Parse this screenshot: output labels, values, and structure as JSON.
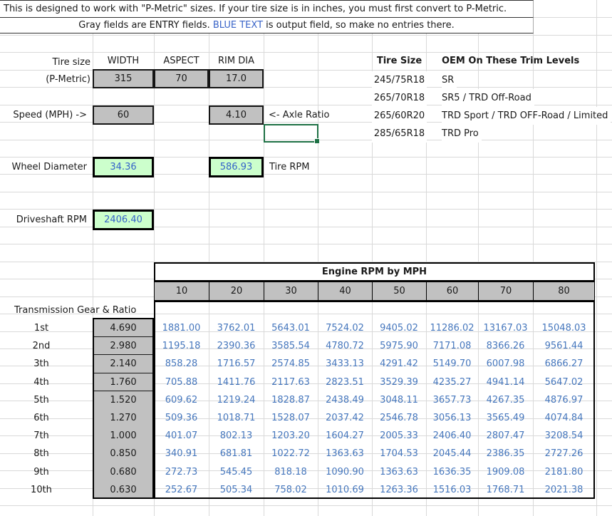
{
  "instructions": {
    "line1": "This is designed to work with \"P-Metric\" sizes. If your tire size is in inches, you must first convert to P-Metric.",
    "line2_pre": "Gray fields are ENTRY fields. ",
    "line2_blue": "BLUE TEXT",
    "line2_post": " is output field, so make no entries there."
  },
  "tire_entry": {
    "label_line1": "Tire size",
    "label_line2": "(P-Metric)",
    "columns": [
      "WIDTH",
      "ASPECT",
      "RIM DIA"
    ],
    "values": [
      "315",
      "70",
      "17.0"
    ]
  },
  "speed": {
    "label": "Speed (MPH) ->",
    "value": "60"
  },
  "axle": {
    "value": "4.10",
    "label": "<- Axle Ratio"
  },
  "outputs": {
    "wheel_diameter": {
      "label": "Wheel Diameter",
      "value": "34.36"
    },
    "tire_rpm": {
      "value": "586.93",
      "label": "Tire RPM"
    },
    "driveshaft_rpm": {
      "label": "Driveshaft RPM",
      "value": "2406.40"
    }
  },
  "oem_table": {
    "header_size": "Tire Size",
    "header_trims": "OEM On These Trim Levels",
    "rows": [
      {
        "size": "245/75R18",
        "trims": "SR"
      },
      {
        "size": "265/70R18",
        "trims": "SR5 / TRD Off-Road"
      },
      {
        "size": "265/60R20",
        "trims": "TRD Sport / TRD OFF-Road / Limited"
      },
      {
        "size": "285/65R18",
        "trims": "TRD Pro"
      }
    ]
  },
  "chart_data": {
    "type": "table",
    "title": "Engine RPM by MPH",
    "gear_section_label": "Transmission Gear & Ratio",
    "mph_columns": [
      "10",
      "20",
      "30",
      "40",
      "50",
      "60",
      "70",
      "80"
    ],
    "gears": [
      {
        "gear": "1st",
        "ratio": "4.690",
        "rpm": [
          "1881.00",
          "3762.01",
          "5643.01",
          "7524.02",
          "9405.02",
          "11286.02",
          "13167.03",
          "15048.03"
        ]
      },
      {
        "gear": "2nd",
        "ratio": "2.980",
        "rpm": [
          "1195.18",
          "2390.36",
          "3585.54",
          "4780.72",
          "5975.90",
          "7171.08",
          "8366.26",
          "9561.44"
        ]
      },
      {
        "gear": "3th",
        "ratio": "2.140",
        "rpm": [
          "858.28",
          "1716.57",
          "2574.85",
          "3433.13",
          "4291.42",
          "5149.70",
          "6007.98",
          "6866.27"
        ]
      },
      {
        "gear": "4th",
        "ratio": "1.760",
        "rpm": [
          "705.88",
          "1411.76",
          "2117.63",
          "2823.51",
          "3529.39",
          "4235.27",
          "4941.14",
          "5647.02"
        ]
      },
      {
        "gear": "5th",
        "ratio": "1.520",
        "rpm": [
          "609.62",
          "1219.24",
          "1828.87",
          "2438.49",
          "3048.11",
          "3657.73",
          "4267.35",
          "4876.97"
        ]
      },
      {
        "gear": "6th",
        "ratio": "1.270",
        "rpm": [
          "509.36",
          "1018.71",
          "1528.07",
          "2037.42",
          "2546.78",
          "3056.13",
          "3565.49",
          "4074.84"
        ]
      },
      {
        "gear": "7th",
        "ratio": "1.000",
        "rpm": [
          "401.07",
          "802.13",
          "1203.20",
          "1604.27",
          "2005.33",
          "2406.40",
          "2807.47",
          "3208.54"
        ]
      },
      {
        "gear": "8th",
        "ratio": "0.850",
        "rpm": [
          "340.91",
          "681.81",
          "1022.72",
          "1363.63",
          "1704.53",
          "2045.44",
          "2386.35",
          "2727.26"
        ]
      },
      {
        "gear": "9th",
        "ratio": "0.680",
        "rpm": [
          "272.73",
          "545.45",
          "818.18",
          "1090.90",
          "1363.63",
          "1636.35",
          "1909.08",
          "2181.80"
        ]
      },
      {
        "gear": "10th",
        "ratio": "0.630",
        "rpm": [
          "252.67",
          "505.34",
          "758.02",
          "1010.69",
          "1263.36",
          "1516.03",
          "1768.71",
          "2021.38"
        ]
      }
    ]
  },
  "colors": {
    "entry_gray": "#c1c1c1",
    "output_green": "#ccffcc",
    "output_blue": "#3463c9",
    "table_blue": "#4677bd",
    "selection_green": "#1e7145",
    "gridline": "#d9d9d9",
    "border_black": "#000000"
  }
}
